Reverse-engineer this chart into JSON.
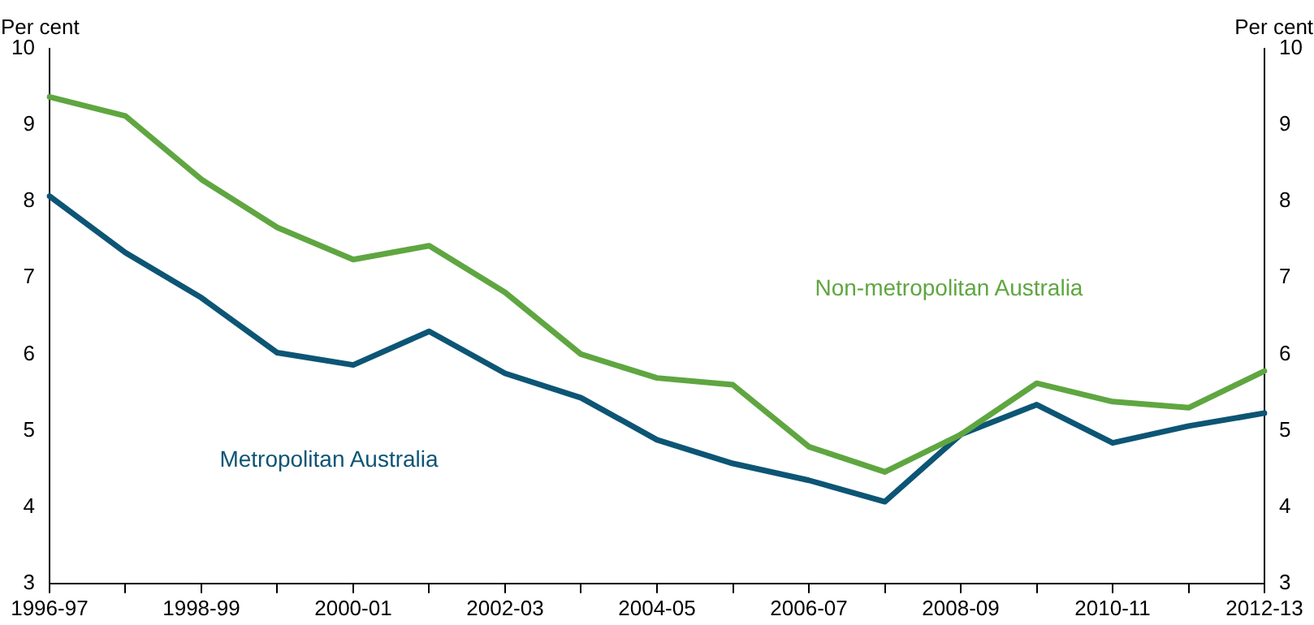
{
  "chart_data": {
    "type": "line",
    "ylabel": "Per cent",
    "y2label": "Per cent",
    "categories": [
      "1996-97",
      null,
      "1998-99",
      null,
      "2000-01",
      null,
      "2002-03",
      null,
      "2004-05",
      null,
      "2006-07",
      null,
      "2008-09",
      null,
      "2010-11",
      null,
      "2012-13"
    ],
    "series": [
      {
        "name": "Non-metropolitan Australia",
        "color": "#5fa641",
        "values": [
          9.37,
          9.12,
          8.29,
          7.66,
          7.24,
          7.42,
          6.81,
          6.0,
          5.69,
          5.6,
          4.79,
          4.46,
          4.95,
          5.62,
          5.38,
          5.3,
          5.78
        ]
      },
      {
        "name": "Metropolitan Australia",
        "color": "#0d5575",
        "values": [
          8.07,
          7.33,
          6.74,
          6.02,
          5.86,
          6.3,
          5.75,
          5.43,
          4.88,
          4.57,
          4.35,
          4.07,
          4.95,
          5.34,
          4.84,
          5.06,
          5.23
        ]
      }
    ],
    "ylim": [
      3,
      10
    ],
    "yticks": [
      3,
      4,
      5,
      6,
      7,
      8,
      9,
      10
    ],
    "y2lim": [
      3,
      10
    ],
    "y2ticks": [
      3,
      4,
      5,
      6,
      7,
      8,
      9,
      10
    ],
    "grid": false,
    "legend": false,
    "marker": "none",
    "line_style": "solid"
  }
}
